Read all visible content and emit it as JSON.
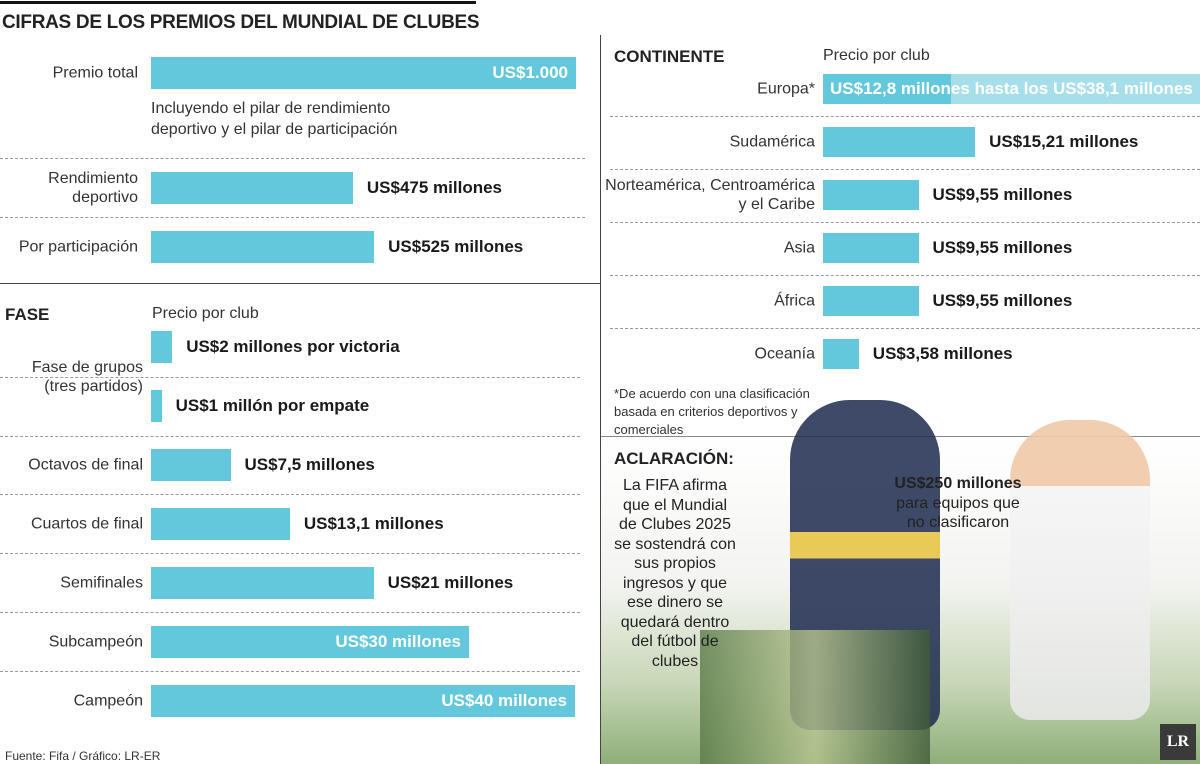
{
  "title": "CIFRAS DE LOS PREMIOS DEL MUNDIAL DE CLUBES",
  "chart_data": [
    {
      "type": "bar",
      "orientation": "horizontal",
      "categories": [
        "Premio total",
        "Rendimiento deportivo",
        "Por participación"
      ],
      "values": [
        1000,
        475,
        525
      ],
      "value_labels": [
        "US$1.000",
        "US$475 millones",
        "US$525 millones"
      ],
      "note": "Incluyendo el pilar de rendimiento deportivo y el pilar de participación",
      "color": "#64c8dc"
    },
    {
      "type": "bar",
      "orientation": "horizontal",
      "title": "FASE",
      "subtitle": "Precio por club",
      "categories": [
        "Fase de grupos (tres partidos)",
        null,
        "Octavos de final",
        "Cuartos de final",
        "Semifinales",
        "Subcampeón",
        "Campeón"
      ],
      "values": [
        2,
        1,
        7.5,
        13.1,
        21,
        30,
        40
      ],
      "value_labels": [
        "US$2 millones por victoria",
        "US$1 millón por empate",
        "US$7,5 millones",
        "US$13,1 millones",
        "US$21 millones",
        "US$30 millones",
        "US$40 millones"
      ],
      "color": "#64c8dc"
    },
    {
      "type": "bar",
      "orientation": "horizontal",
      "title": "CONTINENTE",
      "subtitle": "Precio por club",
      "categories": [
        "Europa*",
        "Sudamérica",
        "Norteamérica, Centroamérica y el Caribe",
        "Asia",
        "África",
        "Oceanía"
      ],
      "values": [
        12.8,
        15.21,
        9.55,
        9.55,
        9.55,
        3.58
      ],
      "values_high": [
        38.1,
        null,
        null,
        null,
        null,
        null
      ],
      "value_labels": [
        "US$12,8 millones hasta los US$38,1 millones",
        "US$15,21 millones",
        "US$9,55 millones",
        "US$9,55 millones",
        "US$9,55 millones",
        "US$3,58 millones"
      ],
      "note": "*De acuerdo con una clasificación basada en criterios deportivos y comerciales",
      "color": "#64c8dc",
      "color_high": "#a6dfea"
    }
  ],
  "clarification": {
    "title": "ACLARACIÓN:",
    "text": "La FIFA afirma que el Mundial de Clubes 2025 se sostendrá con sus propios ingresos y que ese dinero se quedará dentro del fútbol de clubes",
    "callout_value": "US$250 millones",
    "callout_text": "para equipos que no clasificaron"
  },
  "source": "Fuente: Fifa / Gráfico: LR-ER"
}
